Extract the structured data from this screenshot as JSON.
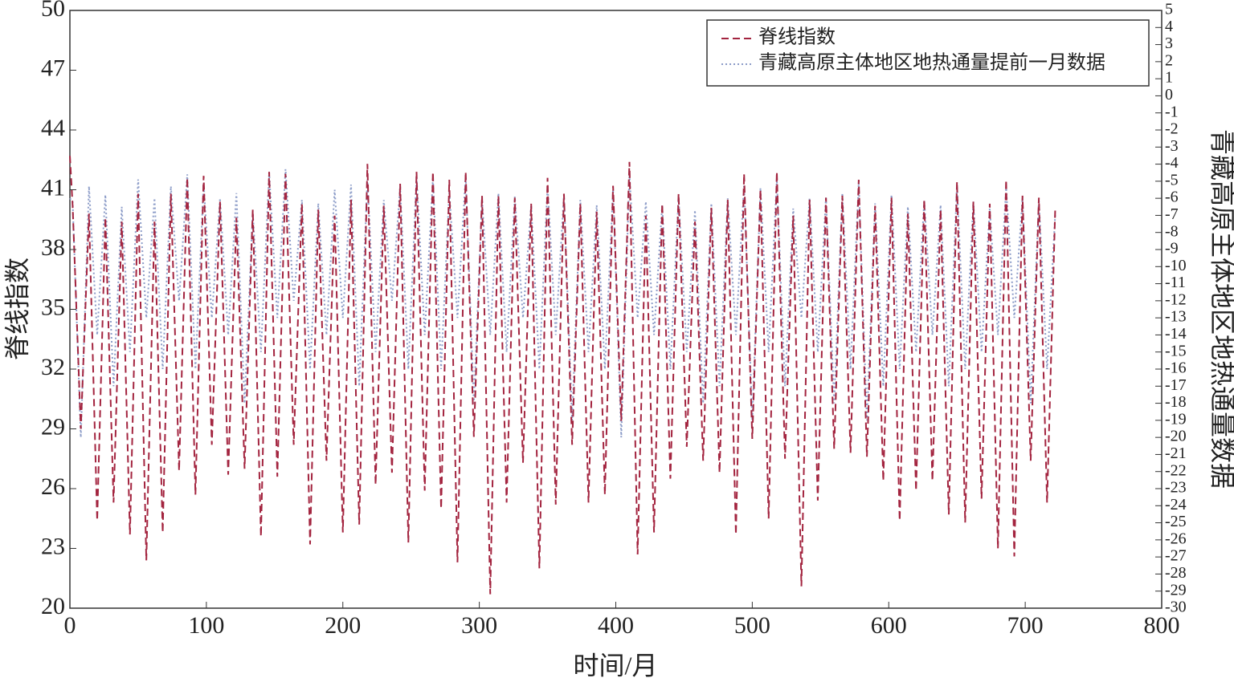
{
  "chart_data": {
    "type": "line",
    "xlabel": "时间/月",
    "ylabel": "脊线指数",
    "y2label": "青藏高原主体地区地热通量数据",
    "x": [
      0,
      2,
      8,
      14,
      20,
      26,
      32,
      38,
      44,
      50,
      56,
      62,
      68,
      74,
      80,
      86,
      92,
      98,
      104,
      110,
      116,
      122,
      128,
      134,
      140,
      146,
      152,
      158,
      164,
      170,
      176,
      182,
      188,
      194,
      200,
      206,
      212,
      218,
      224,
      230,
      236,
      242,
      248,
      254,
      260,
      266,
      272,
      278,
      284,
      290,
      296,
      302,
      308,
      314,
      320,
      326,
      332,
      338,
      344,
      350,
      356,
      362,
      368,
      374,
      380,
      386,
      392,
      398,
      404,
      410,
      416,
      422,
      428,
      434,
      440,
      446,
      452,
      458,
      464,
      470,
      476,
      482,
      488,
      494,
      500,
      506,
      512,
      518,
      524,
      530,
      536,
      542,
      548,
      554,
      560,
      566,
      572,
      578,
      584,
      590,
      596,
      602,
      608,
      614,
      620,
      626,
      632,
      638,
      644,
      650,
      656,
      662,
      668,
      674,
      680,
      686,
      692,
      698,
      704,
      710,
      716,
      722
    ],
    "series": [
      {
        "name": "脊线指数",
        "color": "#a3243f",
        "style": "dashed",
        "values": [
          42.7,
          40.2,
          29,
          39.8,
          24.4,
          39.6,
          25.3,
          39.4,
          23.7,
          40.8,
          22.4,
          39.4,
          23.8,
          40.8,
          26.9,
          41.6,
          25.7,
          41.7,
          28.2,
          40.4,
          26.7,
          39.6,
          27,
          40,
          23.6,
          41.9,
          26.6,
          41.8,
          28.2,
          40.3,
          23.2,
          40,
          27.4,
          39.7,
          23.8,
          40.5,
          24.2,
          42.3,
          26.2,
          40.2,
          26.8,
          41.3,
          23.3,
          41.9,
          25.9,
          41.9,
          25,
          41.5,
          22.3,
          41.9,
          28.6,
          40.7,
          20.7,
          40.7,
          25.3,
          40.6,
          27.3,
          40.3,
          22,
          41.6,
          25.2,
          40.8,
          28.2,
          40.3,
          25.3,
          39.9,
          25.7,
          41.2,
          29.4,
          42.4,
          22.7,
          39.7,
          23.8,
          40.3,
          26.5,
          40.8,
          28.1,
          39.4,
          27.4,
          40.1,
          26.8,
          40.5,
          23.7,
          41.8,
          28.5,
          41,
          24.5,
          41.9,
          27.5,
          39.7,
          21.1,
          40.5,
          25.4,
          40.6,
          28,
          40.7,
          27.8,
          41.5,
          27.6,
          40.2,
          26.4,
          40.6,
          24.4,
          39.8,
          25.9,
          40.5,
          26.4,
          40,
          24.7,
          41.4,
          24.3,
          40.4,
          25.5,
          40.3,
          23,
          41.5,
          22.6,
          40.7,
          27.4,
          40.6,
          25.3,
          40.1
        ]
      },
      {
        "name": "青藏高原主体地区地热通量提前一月数据",
        "color": "#8c9cc8",
        "style": "dotted",
        "axis": "y2",
        "values": [
          -6,
          -6.2,
          -20,
          -5.3,
          -14,
          -5.8,
          -17,
          -6.5,
          -15,
          -4.9,
          -13,
          -6,
          -16,
          -5.3,
          -12,
          -4.6,
          -16,
          -5.1,
          -13,
          -6,
          -14,
          -5.7,
          -18,
          -6.8,
          -15,
          -4.5,
          -13,
          -4.3,
          -12,
          -6.1,
          -16,
          -6.3,
          -14,
          -5.5,
          -13,
          -5.2,
          -17,
          -4.9,
          -15,
          -6.1,
          -12,
          -5.3,
          -16,
          -4.7,
          -14,
          -4.8,
          -16,
          -5.6,
          -13,
          -4.7,
          -18,
          -6,
          -14,
          -5.7,
          -15,
          -5.9,
          -13,
          -6.4,
          -16,
          -5.2,
          -14,
          -5.8,
          -19,
          -6.1,
          -15,
          -6.4,
          -16,
          -5.5,
          -20,
          -4.6,
          -13,
          -6.2,
          -14,
          -6.4,
          -16,
          -5.9,
          -15,
          -6.7,
          -18,
          -6.3,
          -17,
          -6,
          -14,
          -5.2,
          -19,
          -5.4,
          -15,
          -4.9,
          -17,
          -6.6,
          -13,
          -6,
          -15,
          -5.9,
          -18,
          -5.7,
          -16,
          -5.1,
          -19,
          -6.3,
          -17,
          -5.8,
          -16,
          -6.5,
          -15,
          -6.1,
          -14,
          -6.4,
          -17,
          -5.2,
          -16,
          -6.2,
          -15,
          -6.6,
          -14,
          -5.4,
          -13,
          -6,
          -18,
          -6.1,
          -16,
          -6.9
        ]
      }
    ],
    "xlim": [
      0,
      800
    ],
    "xticks": [
      0,
      100,
      200,
      300,
      400,
      500,
      600,
      700,
      800
    ],
    "ylim": [
      20,
      50
    ],
    "yticks": [
      20,
      23,
      26,
      29,
      32,
      35,
      38,
      41,
      44,
      47,
      50
    ],
    "y2lim": [
      -30,
      5
    ],
    "y2ticks": [
      5,
      4,
      3,
      2,
      1,
      0,
      -1,
      -2,
      -3,
      -4,
      -5,
      -6,
      -7,
      -8,
      -9,
      -10,
      -11,
      -12,
      -13,
      -14,
      -15,
      -16,
      -17,
      -18,
      -19,
      -20,
      -21,
      -22,
      -23,
      -24,
      -25,
      -26,
      -27,
      -28,
      -29,
      -30
    ],
    "legend": "upper right"
  }
}
